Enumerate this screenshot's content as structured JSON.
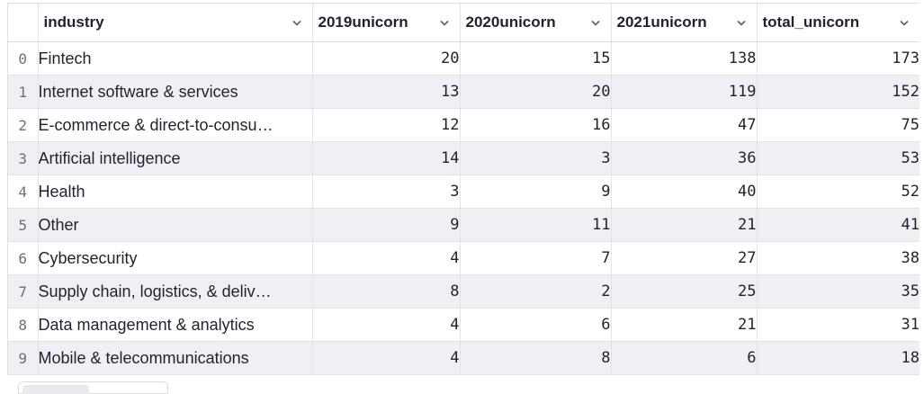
{
  "table": {
    "columns": [
      {
        "key": "industry",
        "label": "industry"
      },
      {
        "key": "u2019",
        "label": "2019unicorn"
      },
      {
        "key": "u2020",
        "label": "2020unicorn"
      },
      {
        "key": "u2021",
        "label": "2021unicorn"
      },
      {
        "key": "total",
        "label": "total_unicorn"
      }
    ],
    "rows": [
      {
        "index": "0",
        "industry": "Fintech",
        "u2019": "20",
        "u2020": "15",
        "u2021": "138",
        "total": "173"
      },
      {
        "index": "1",
        "industry": "Internet software & services",
        "u2019": "13",
        "u2020": "20",
        "u2021": "119",
        "total": "152"
      },
      {
        "index": "2",
        "industry": "E-commerce & direct-to-consu…",
        "u2019": "12",
        "u2020": "16",
        "u2021": "47",
        "total": "75"
      },
      {
        "index": "3",
        "industry": "Artificial intelligence",
        "u2019": "14",
        "u2020": "3",
        "u2021": "36",
        "total": "53"
      },
      {
        "index": "4",
        "industry": "Health",
        "u2019": "3",
        "u2020": "9",
        "u2021": "40",
        "total": "52"
      },
      {
        "index": "5",
        "industry": "Other",
        "u2019": "9",
        "u2020": "11",
        "u2021": "21",
        "total": "41"
      },
      {
        "index": "6",
        "industry": "Cybersecurity",
        "u2019": "4",
        "u2020": "7",
        "u2021": "27",
        "total": "38"
      },
      {
        "index": "7",
        "industry": "Supply chain, logistics, & deliv…",
        "u2019": "8",
        "u2020": "2",
        "u2021": "25",
        "total": "35"
      },
      {
        "index": "8",
        "industry": "Data management & analytics",
        "u2019": "4",
        "u2020": "6",
        "u2021": "21",
        "total": "31"
      },
      {
        "index": "9",
        "industry": "Mobile & telecommunications",
        "u2019": "4",
        "u2020": "8",
        "u2021": "6",
        "total": "18"
      }
    ]
  },
  "icons": {
    "column_menu": "chevron-down-icon"
  },
  "colors": {
    "zebra_row": "#eff0f3",
    "grid_line": "#e2e3e8",
    "text": "#1f2230"
  }
}
